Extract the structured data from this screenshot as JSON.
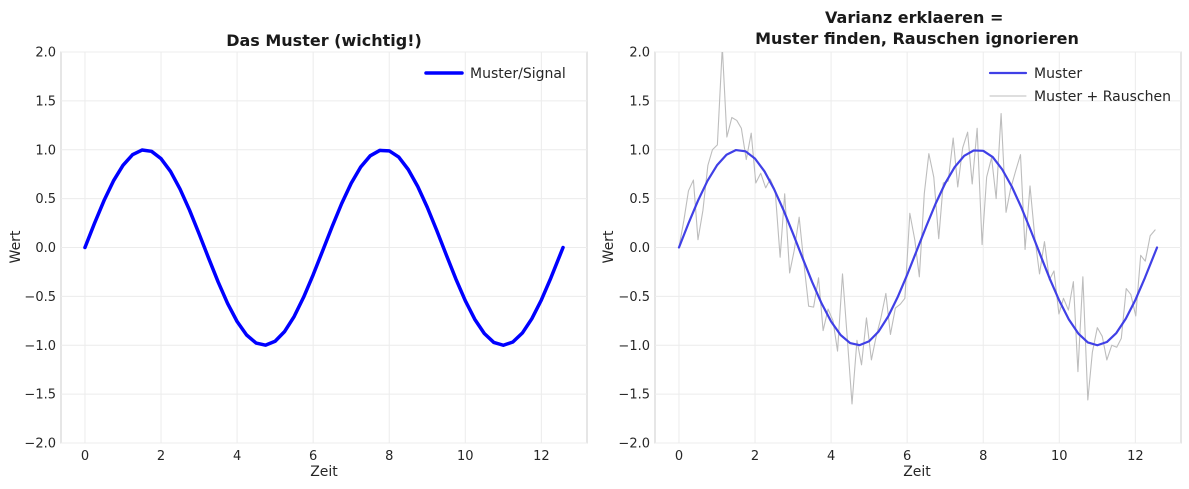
{
  "chart_data": [
    {
      "type": "line",
      "title": "Das Muster (wichtig!)",
      "xlabel": "Zeit",
      "ylabel": "Wert",
      "xlim": [
        -0.63,
        13.2
      ],
      "ylim": [
        -2.0,
        2.0
      ],
      "x_ticks": [
        0,
        2,
        4,
        6,
        8,
        10,
        12
      ],
      "x_tick_labels": [
        "0",
        "2",
        "4",
        "6",
        "8",
        "10",
        "12"
      ],
      "y_ticks": [
        -2.0,
        -1.5,
        -1.0,
        -0.5,
        0.0,
        0.5,
        1.0,
        1.5,
        2.0
      ],
      "y_tick_labels": [
        "−2.0",
        "−1.5",
        "−1.0",
        "−0.5",
        "0.0",
        "0.5",
        "1.0",
        "1.5",
        "2.0"
      ],
      "grid": true,
      "legend_position": "top-right",
      "series": [
        {
          "name": "Muster/Signal",
          "color": "#0000ff",
          "x": [
            0.0,
            0.25,
            0.5,
            0.75,
            1.0,
            1.25,
            1.5,
            1.75,
            2.0,
            2.25,
            2.5,
            2.75,
            3.0,
            3.25,
            3.5,
            3.75,
            4.0,
            4.25,
            4.5,
            4.75,
            5.0,
            5.25,
            5.5,
            5.75,
            6.0,
            6.25,
            6.5,
            6.75,
            7.0,
            7.25,
            7.5,
            7.75,
            8.0,
            8.25,
            8.5,
            8.75,
            9.0,
            9.25,
            9.5,
            9.75,
            10.0,
            10.25,
            10.5,
            10.75,
            11.0,
            11.25,
            11.5,
            11.75,
            12.0,
            12.25,
            12.57
          ],
          "y": [
            0.0,
            0.247,
            0.479,
            0.682,
            0.841,
            0.949,
            0.997,
            0.984,
            0.909,
            0.778,
            0.598,
            0.382,
            0.141,
            -0.108,
            -0.351,
            -0.572,
            -0.757,
            -0.895,
            -0.978,
            -0.999,
            -0.959,
            -0.859,
            -0.706,
            -0.508,
            -0.279,
            -0.033,
            0.215,
            0.45,
            0.657,
            0.823,
            0.938,
            0.993,
            0.989,
            0.925,
            0.798,
            0.624,
            0.412,
            0.174,
            -0.075,
            -0.32,
            -0.544,
            -0.735,
            -0.88,
            -0.971,
            -1.0,
            -0.967,
            -0.875,
            -0.728,
            -0.537,
            -0.311,
            0.0
          ]
        }
      ]
    },
    {
      "type": "line",
      "title": "Varianz erklaeren =\nMuster finden, Rauschen ignorieren",
      "xlabel": "Zeit",
      "ylabel": "Wert",
      "xlim": [
        -0.63,
        13.2
      ],
      "ylim": [
        -2.0,
        2.0
      ],
      "x_ticks": [
        0,
        2,
        4,
        6,
        8,
        10,
        12
      ],
      "x_tick_labels": [
        "0",
        "2",
        "4",
        "6",
        "8",
        "10",
        "12"
      ],
      "y_ticks": [
        -2.0,
        -1.5,
        -1.0,
        -0.5,
        0.0,
        0.5,
        1.0,
        1.5,
        2.0
      ],
      "y_tick_labels": [
        "−2.0",
        "−1.5",
        "−1.0",
        "−0.5",
        "0.0",
        "0.5",
        "1.0",
        "1.5",
        "2.0"
      ],
      "grid": true,
      "legend_position": "top-right",
      "series": [
        {
          "name": "Muster",
          "color": "#4040e6",
          "x": [
            0.0,
            0.25,
            0.5,
            0.75,
            1.0,
            1.25,
            1.5,
            1.75,
            2.0,
            2.25,
            2.5,
            2.75,
            3.0,
            3.25,
            3.5,
            3.75,
            4.0,
            4.25,
            4.5,
            4.75,
            5.0,
            5.25,
            5.5,
            5.75,
            6.0,
            6.25,
            6.5,
            6.75,
            7.0,
            7.25,
            7.5,
            7.75,
            8.0,
            8.25,
            8.5,
            8.75,
            9.0,
            9.25,
            9.5,
            9.75,
            10.0,
            10.25,
            10.5,
            10.75,
            11.0,
            11.25,
            11.5,
            11.75,
            12.0,
            12.25,
            12.57
          ],
          "y": [
            0.0,
            0.247,
            0.479,
            0.682,
            0.841,
            0.949,
            0.997,
            0.984,
            0.909,
            0.778,
            0.598,
            0.382,
            0.141,
            -0.108,
            -0.351,
            -0.572,
            -0.757,
            -0.895,
            -0.978,
            -0.999,
            -0.959,
            -0.859,
            -0.706,
            -0.508,
            -0.279,
            -0.033,
            0.215,
            0.45,
            0.657,
            0.823,
            0.938,
            0.993,
            0.989,
            0.925,
            0.798,
            0.624,
            0.412,
            0.174,
            -0.075,
            -0.32,
            -0.544,
            -0.735,
            -0.88,
            -0.971,
            -1.0,
            -0.967,
            -0.875,
            -0.728,
            -0.537,
            -0.311,
            0.0
          ]
        },
        {
          "name": "Muster + Rauschen",
          "color": "#bdbdbd",
          "x": [
            0.0,
            0.13,
            0.25,
            0.38,
            0.5,
            0.63,
            0.76,
            0.88,
            1.01,
            1.14,
            1.26,
            1.39,
            1.52,
            1.64,
            1.77,
            1.9,
            2.02,
            2.15,
            2.28,
            2.4,
            2.53,
            2.66,
            2.78,
            2.91,
            3.03,
            3.16,
            3.29,
            3.41,
            3.54,
            3.67,
            3.79,
            3.92,
            4.05,
            4.17,
            4.3,
            4.43,
            4.55,
            4.68,
            4.8,
            4.93,
            5.06,
            5.18,
            5.31,
            5.44,
            5.56,
            5.69,
            5.82,
            5.94,
            6.07,
            6.2,
            6.32,
            6.45,
            6.57,
            6.7,
            6.83,
            6.95,
            7.08,
            7.21,
            7.33,
            7.46,
            7.59,
            7.71,
            7.84,
            7.97,
            8.09,
            8.22,
            8.34,
            8.47,
            8.6,
            8.72,
            8.85,
            8.98,
            9.1,
            9.23,
            9.36,
            9.48,
            9.61,
            9.74,
            9.86,
            9.99,
            10.11,
            10.24,
            10.37,
            10.49,
            10.62,
            10.75,
            10.87,
            11.0,
            11.13,
            11.25,
            11.38,
            11.51,
            11.63,
            11.76,
            11.88,
            12.01,
            12.14,
            12.26,
            12.39,
            12.52
          ],
          "y": [
            0.0,
            0.28,
            0.58,
            0.69,
            0.08,
            0.38,
            0.84,
            1.0,
            1.05,
            2.05,
            1.13,
            1.33,
            1.3,
            1.22,
            0.9,
            1.17,
            0.66,
            0.76,
            0.61,
            0.7,
            0.58,
            -0.1,
            0.55,
            -0.26,
            -0.03,
            0.31,
            -0.18,
            -0.6,
            -0.61,
            -0.31,
            -0.85,
            -0.63,
            -0.75,
            -1.06,
            -0.27,
            -0.95,
            -1.6,
            -0.95,
            -1.2,
            -0.72,
            -1.15,
            -0.92,
            -0.72,
            -0.47,
            -0.89,
            -0.62,
            -0.58,
            -0.52,
            0.35,
            0.08,
            -0.3,
            0.55,
            0.96,
            0.72,
            0.09,
            0.66,
            0.68,
            1.12,
            0.62,
            1.02,
            1.18,
            0.65,
            1.22,
            0.03,
            0.72,
            0.92,
            0.5,
            1.37,
            0.36,
            0.6,
            0.78,
            0.95,
            -0.02,
            0.63,
            0.09,
            -0.27,
            0.06,
            -0.33,
            -0.24,
            -0.68,
            -0.52,
            -0.64,
            -0.35,
            -1.27,
            -0.3,
            -1.56,
            -1.07,
            -0.82,
            -0.91,
            -1.15,
            -1.0,
            -1.02,
            -0.93,
            -0.42,
            -0.48,
            -0.7,
            -0.08,
            -0.14,
            0.12,
            0.18
          ]
        }
      ]
    }
  ]
}
